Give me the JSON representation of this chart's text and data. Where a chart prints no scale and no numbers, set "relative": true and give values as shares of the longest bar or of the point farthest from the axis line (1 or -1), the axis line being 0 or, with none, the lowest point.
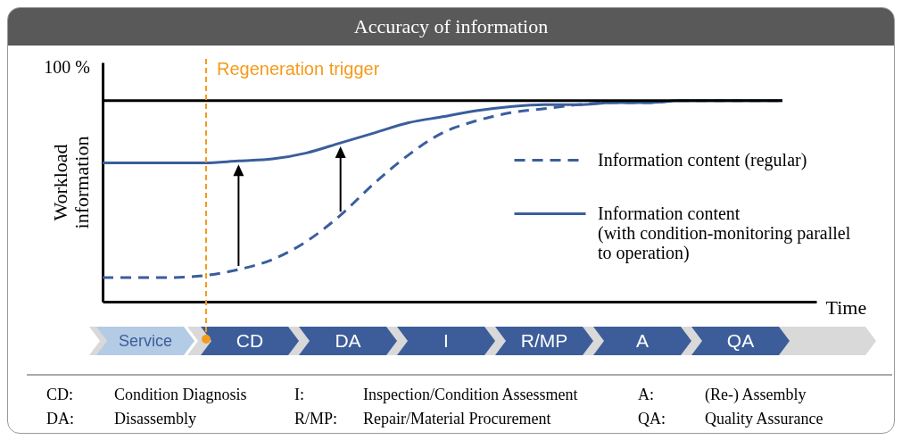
{
  "chart_data": {
    "type": "line",
    "title": "Accuracy of information",
    "xlabel": "Time",
    "ylabel": "Workload information",
    "relative": true,
    "categories": [
      null,
      null,
      null,
      null,
      null,
      null,
      null,
      null,
      null,
      null,
      null,
      null,
      null,
      null,
      null,
      null,
      null,
      null,
      null,
      null,
      null
    ],
    "series": [
      {
        "name": "Information content (regular)",
        "color": "#3a5e9c",
        "line_style": "dashed",
        "values": [
          0.12,
          0.12,
          0.12,
          0.13,
          0.16,
          0.21,
          0.3,
          0.43,
          0.59,
          0.73,
          0.84,
          0.9,
          0.94,
          0.96,
          0.98,
          0.99,
          0.99,
          1,
          1,
          1,
          1
        ]
      },
      {
        "name": "Information content (with condition-monitoring parallel to operation)",
        "color": "#3a5e9c",
        "line_style": "solid",
        "values": [
          0.69,
          0.69,
          0.69,
          0.69,
          0.7,
          0.71,
          0.74,
          0.79,
          0.84,
          0.89,
          0.92,
          0.95,
          0.97,
          0.98,
          0.98,
          0.99,
          0.99,
          1,
          1,
          1,
          1
        ]
      }
    ],
    "ref_lines": [
      {
        "axis": "y",
        "value": 1,
        "label": "100 %",
        "color": "#000000",
        "line_style": "solid"
      }
    ],
    "legend": "right",
    "annotations": [
      "Regeneration trigger",
      "Service",
      "CD",
      "DA",
      "I",
      "R/MP",
      "A",
      "QA",
      "CD: Condition Diagnosis",
      "I: Inspection/Condition Assessment",
      "A: (Re-) Assembly",
      "DA: Disassembly",
      "R/MP: Repair/Material Procurement",
      "QA: Quality Assurance"
    ]
  }
}
